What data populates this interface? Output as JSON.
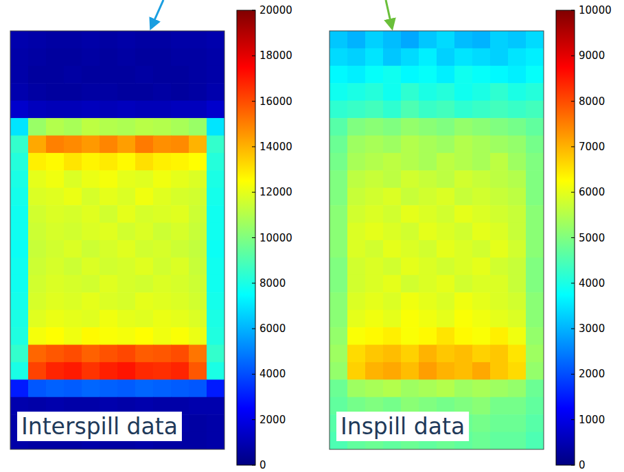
{
  "chart_data": [
    {
      "type": "heatmap",
      "title": "Interspill data",
      "tick_labels": false,
      "color_range": [
        0,
        20000
      ],
      "color_ticks": [
        0,
        2000,
        4000,
        6000,
        8000,
        10000,
        12000,
        14000,
        16000,
        18000,
        20000
      ],
      "cells": [
        [
          900,
          800,
          700,
          700,
          800,
          700,
          800,
          700,
          700,
          800,
          800,
          900
        ],
        [
          800,
          700,
          600,
          600,
          700,
          600,
          700,
          600,
          600,
          700,
          700,
          800
        ],
        [
          800,
          600,
          600,
          700,
          600,
          600,
          600,
          700,
          600,
          600,
          700,
          800
        ],
        [
          900,
          700,
          600,
          600,
          700,
          700,
          600,
          600,
          700,
          600,
          700,
          900
        ],
        [
          1500,
          1200,
          1100,
          1100,
          1200,
          1100,
          1200,
          1100,
          1100,
          1200,
          1200,
          1500
        ],
        [
          7000,
          10500,
          11000,
          10800,
          11200,
          11000,
          10900,
          11100,
          11000,
          10800,
          10500,
          7000
        ],
        [
          8500,
          14200,
          15000,
          14800,
          14500,
          14900,
          14400,
          15100,
          14700,
          14800,
          14000,
          8500
        ],
        [
          8200,
          12800,
          12600,
          13000,
          12700,
          12900,
          12600,
          13100,
          12800,
          12700,
          12500,
          8200
        ],
        [
          8000,
          12000,
          12200,
          11800,
          12100,
          12300,
          12000,
          11900,
          12200,
          12000,
          11800,
          8000
        ],
        [
          7900,
          11800,
          11900,
          12100,
          11700,
          12000,
          11800,
          12200,
          11900,
          11700,
          11600,
          7900
        ],
        [
          7800,
          11600,
          11800,
          11700,
          11900,
          11600,
          12000,
          11700,
          11800,
          11900,
          11500,
          7800
        ],
        [
          7800,
          11500,
          11700,
          11600,
          11800,
          11900,
          11600,
          11800,
          11500,
          11700,
          11400,
          7800
        ],
        [
          7700,
          11400,
          11600,
          11800,
          11500,
          11700,
          11900,
          11600,
          11700,
          11500,
          11300,
          7700
        ],
        [
          7800,
          11500,
          11700,
          11500,
          11800,
          11600,
          11700,
          11900,
          11600,
          11800,
          11400,
          7800
        ],
        [
          7800,
          11600,
          11800,
          11700,
          11600,
          11900,
          11700,
          11600,
          11800,
          11700,
          11500,
          7800
        ],
        [
          7900,
          11700,
          11900,
          11800,
          12000,
          11800,
          11700,
          12000,
          11900,
          11800,
          11600,
          7900
        ],
        [
          8000,
          11900,
          12100,
          12000,
          11900,
          12200,
          12000,
          11900,
          12100,
          12000,
          11800,
          8000
        ],
        [
          8100,
          12300,
          12500,
          12200,
          12600,
          12400,
          12300,
          12500,
          12200,
          12400,
          12100,
          8100
        ],
        [
          8500,
          15500,
          15800,
          16000,
          15600,
          15900,
          16100,
          15700,
          15800,
          16000,
          15200,
          8500
        ],
        [
          8000,
          16200,
          16800,
          17000,
          16500,
          16900,
          17100,
          16700,
          16600,
          16800,
          15800,
          8000
        ],
        [
          3000,
          4200,
          4400,
          4300,
          4500,
          4400,
          4300,
          4500,
          4400,
          4300,
          4200,
          3000
        ],
        [
          900,
          800,
          900,
          800,
          800,
          900,
          800,
          900,
          800,
          800,
          900,
          900
        ],
        [
          800,
          700,
          700,
          800,
          700,
          700,
          800,
          700,
          700,
          800,
          700,
          800
        ],
        [
          800,
          700,
          700,
          700,
          800,
          700,
          700,
          800,
          700,
          700,
          700,
          800
        ]
      ]
    },
    {
      "type": "heatmap",
      "title": "Inspill data",
      "tick_labels": false,
      "color_range": [
        0,
        10000
      ],
      "color_ticks": [
        0,
        1000,
        2000,
        3000,
        4000,
        5000,
        6000,
        7000,
        8000,
        9000,
        10000
      ],
      "cells": [
        [
          3200,
          3000,
          3300,
          3100,
          2900,
          3200,
          3400,
          3100,
          3000,
          3300,
          3200,
          3400
        ],
        [
          3400,
          3300,
          3500,
          3200,
          3400,
          3600,
          3300,
          3500,
          3400,
          3300,
          3500,
          3600
        ],
        [
          3700,
          3600,
          3800,
          3900,
          3700,
          3800,
          3600,
          3900,
          3800,
          3700,
          3600,
          3800
        ],
        [
          3900,
          4000,
          4100,
          3900,
          4200,
          4000,
          4100,
          3900,
          4000,
          4200,
          4000,
          4100
        ],
        [
          4200,
          4300,
          4400,
          4200,
          4500,
          4300,
          4400,
          4200,
          4300,
          4400,
          4300,
          4400
        ],
        [
          4600,
          5000,
          5100,
          5000,
          5200,
          5100,
          5000,
          5200,
          5100,
          5000,
          4900,
          4700
        ],
        [
          4800,
          5300,
          5400,
          5300,
          5500,
          5400,
          5300,
          5500,
          5400,
          5300,
          5200,
          4900
        ],
        [
          4900,
          5400,
          5500,
          5600,
          5500,
          5400,
          5600,
          5500,
          5400,
          5600,
          5300,
          5000
        ],
        [
          5000,
          5600,
          5700,
          5600,
          5800,
          5700,
          5600,
          5800,
          5700,
          5600,
          5500,
          5000
        ],
        [
          5000,
          5700,
          5800,
          5900,
          5700,
          5800,
          5900,
          5700,
          5800,
          5700,
          5600,
          5000
        ],
        [
          5100,
          5800,
          5900,
          5800,
          6000,
          5900,
          5800,
          6000,
          5900,
          5800,
          5700,
          5100
        ],
        [
          5100,
          5900,
          6000,
          5900,
          5800,
          6000,
          5900,
          5800,
          6000,
          5900,
          5700,
          5100
        ],
        [
          5100,
          5900,
          5800,
          6000,
          5900,
          5800,
          6000,
          5900,
          5800,
          6000,
          5800,
          5100
        ],
        [
          5000,
          5800,
          5900,
          5800,
          6000,
          5900,
          5800,
          5900,
          6000,
          5800,
          5700,
          5000
        ],
        [
          5000,
          5800,
          5900,
          6000,
          5800,
          5900,
          6000,
          5800,
          5900,
          5900,
          5700,
          5000
        ],
        [
          5100,
          5900,
          6000,
          5900,
          6100,
          6000,
          5900,
          6100,
          6000,
          5900,
          5800,
          5100
        ],
        [
          5100,
          6000,
          6100,
          6000,
          6200,
          6100,
          6000,
          6200,
          6100,
          6000,
          5900,
          5100
        ],
        [
          5200,
          6200,
          6300,
          6400,
          6200,
          6300,
          6500,
          6300,
          6200,
          6400,
          6100,
          5200
        ],
        [
          5300,
          6600,
          6800,
          6900,
          6700,
          7000,
          6800,
          6900,
          6700,
          6800,
          6500,
          5300
        ],
        [
          5200,
          6700,
          7000,
          7100,
          6900,
          7200,
          7000,
          6900,
          7100,
          6800,
          6600,
          5200
        ],
        [
          4800,
          5300,
          5400,
          5500,
          5300,
          5400,
          5500,
          5300,
          5400,
          5300,
          5200,
          4800
        ],
        [
          4700,
          4900,
          5000,
          4900,
          5100,
          5000,
          4900,
          5000,
          5100,
          4900,
          4900,
          4700
        ],
        [
          4600,
          4800,
          4900,
          4800,
          4900,
          4800,
          4900,
          4800,
          4900,
          4800,
          4800,
          4600
        ],
        [
          4500,
          4700,
          4800,
          4700,
          4800,
          4700,
          4800,
          4700,
          4800,
          4700,
          4700,
          4500
        ]
      ]
    }
  ]
}
